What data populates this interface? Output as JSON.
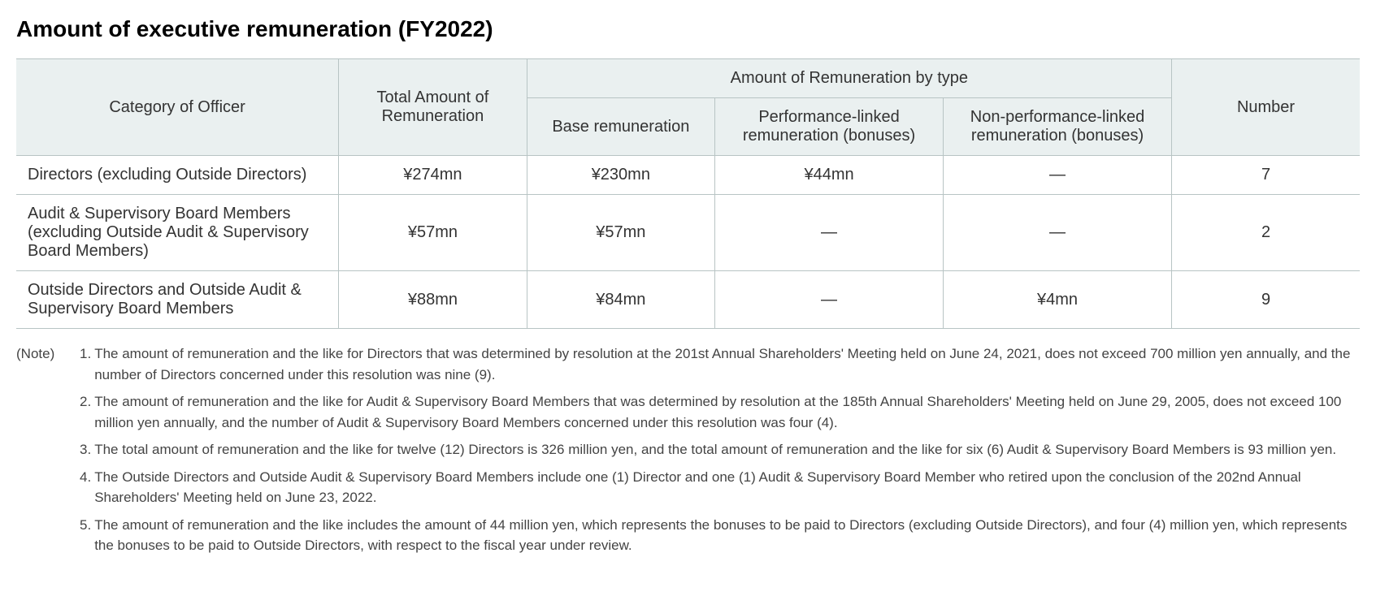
{
  "title": "Amount of executive remuneration (FY2022)",
  "table": {
    "headers": {
      "category": "Category of Officer",
      "total": "Total Amount of Remuneration",
      "by_type": "Amount of Remuneration by type",
      "base": "Base remuneration",
      "performance": "Performance-linked remuneration (bonuses)",
      "non_performance": "Non-performance-linked remuneration (bonuses)",
      "number": "Number"
    },
    "rows": [
      {
        "category": "Directors (excluding Outside Directors)",
        "total": "¥274mn",
        "base": "¥230mn",
        "performance": "¥44mn",
        "non_performance": "—",
        "number": "7"
      },
      {
        "category": "Audit & Supervisory Board Members (excluding Outside Audit & Supervisory Board Members)",
        "total": "¥57mn",
        "base": "¥57mn",
        "performance": "—",
        "non_performance": "—",
        "number": "2"
      },
      {
        "category": "Outside Directors and Outside Audit & Supervisory Board Members",
        "total": "¥88mn",
        "base": "¥84mn",
        "performance": "—",
        "non_performance": "¥4mn",
        "number": "9"
      }
    ]
  },
  "notes": {
    "label": "(Note)",
    "items": [
      {
        "num": "1.",
        "text": "The amount of remuneration and the like for Directors that was determined by resolution at the 201st Annual Shareholders' Meeting held on June 24, 2021, does not exceed 700 million yen annually, and the number of Directors concerned under this resolution was nine (9)."
      },
      {
        "num": "2.",
        "text": "The amount of remuneration and the like for Audit & Supervisory Board Members that was determined by resolution at the 185th Annual Shareholders' Meeting held on June 29, 2005, does not exceed 100 million yen annually, and the number of Audit & Supervisory Board Members concerned under this resolution was four (4)."
      },
      {
        "num": "3.",
        "text": "The total amount of remuneration and the like for twelve (12) Directors is 326 million yen, and the total amount of remuneration and the like for six (6) Audit & Supervisory Board Members is 93 million yen."
      },
      {
        "num": "4.",
        "text": "The Outside Directors and Outside Audit & Supervisory Board Members include one (1) Director and one (1) Audit & Supervisory Board Member who retired upon the conclusion of the 202nd Annual Shareholders' Meeting held on June 23, 2022."
      },
      {
        "num": "5.",
        "text": "The amount of remuneration and the like includes the amount of 44 million yen, which represents the bonuses to be paid to Directors (excluding Outside Directors), and four (4) million yen, which represents the bonuses to be paid to Outside Directors, with respect to the fiscal year under review."
      }
    ]
  }
}
